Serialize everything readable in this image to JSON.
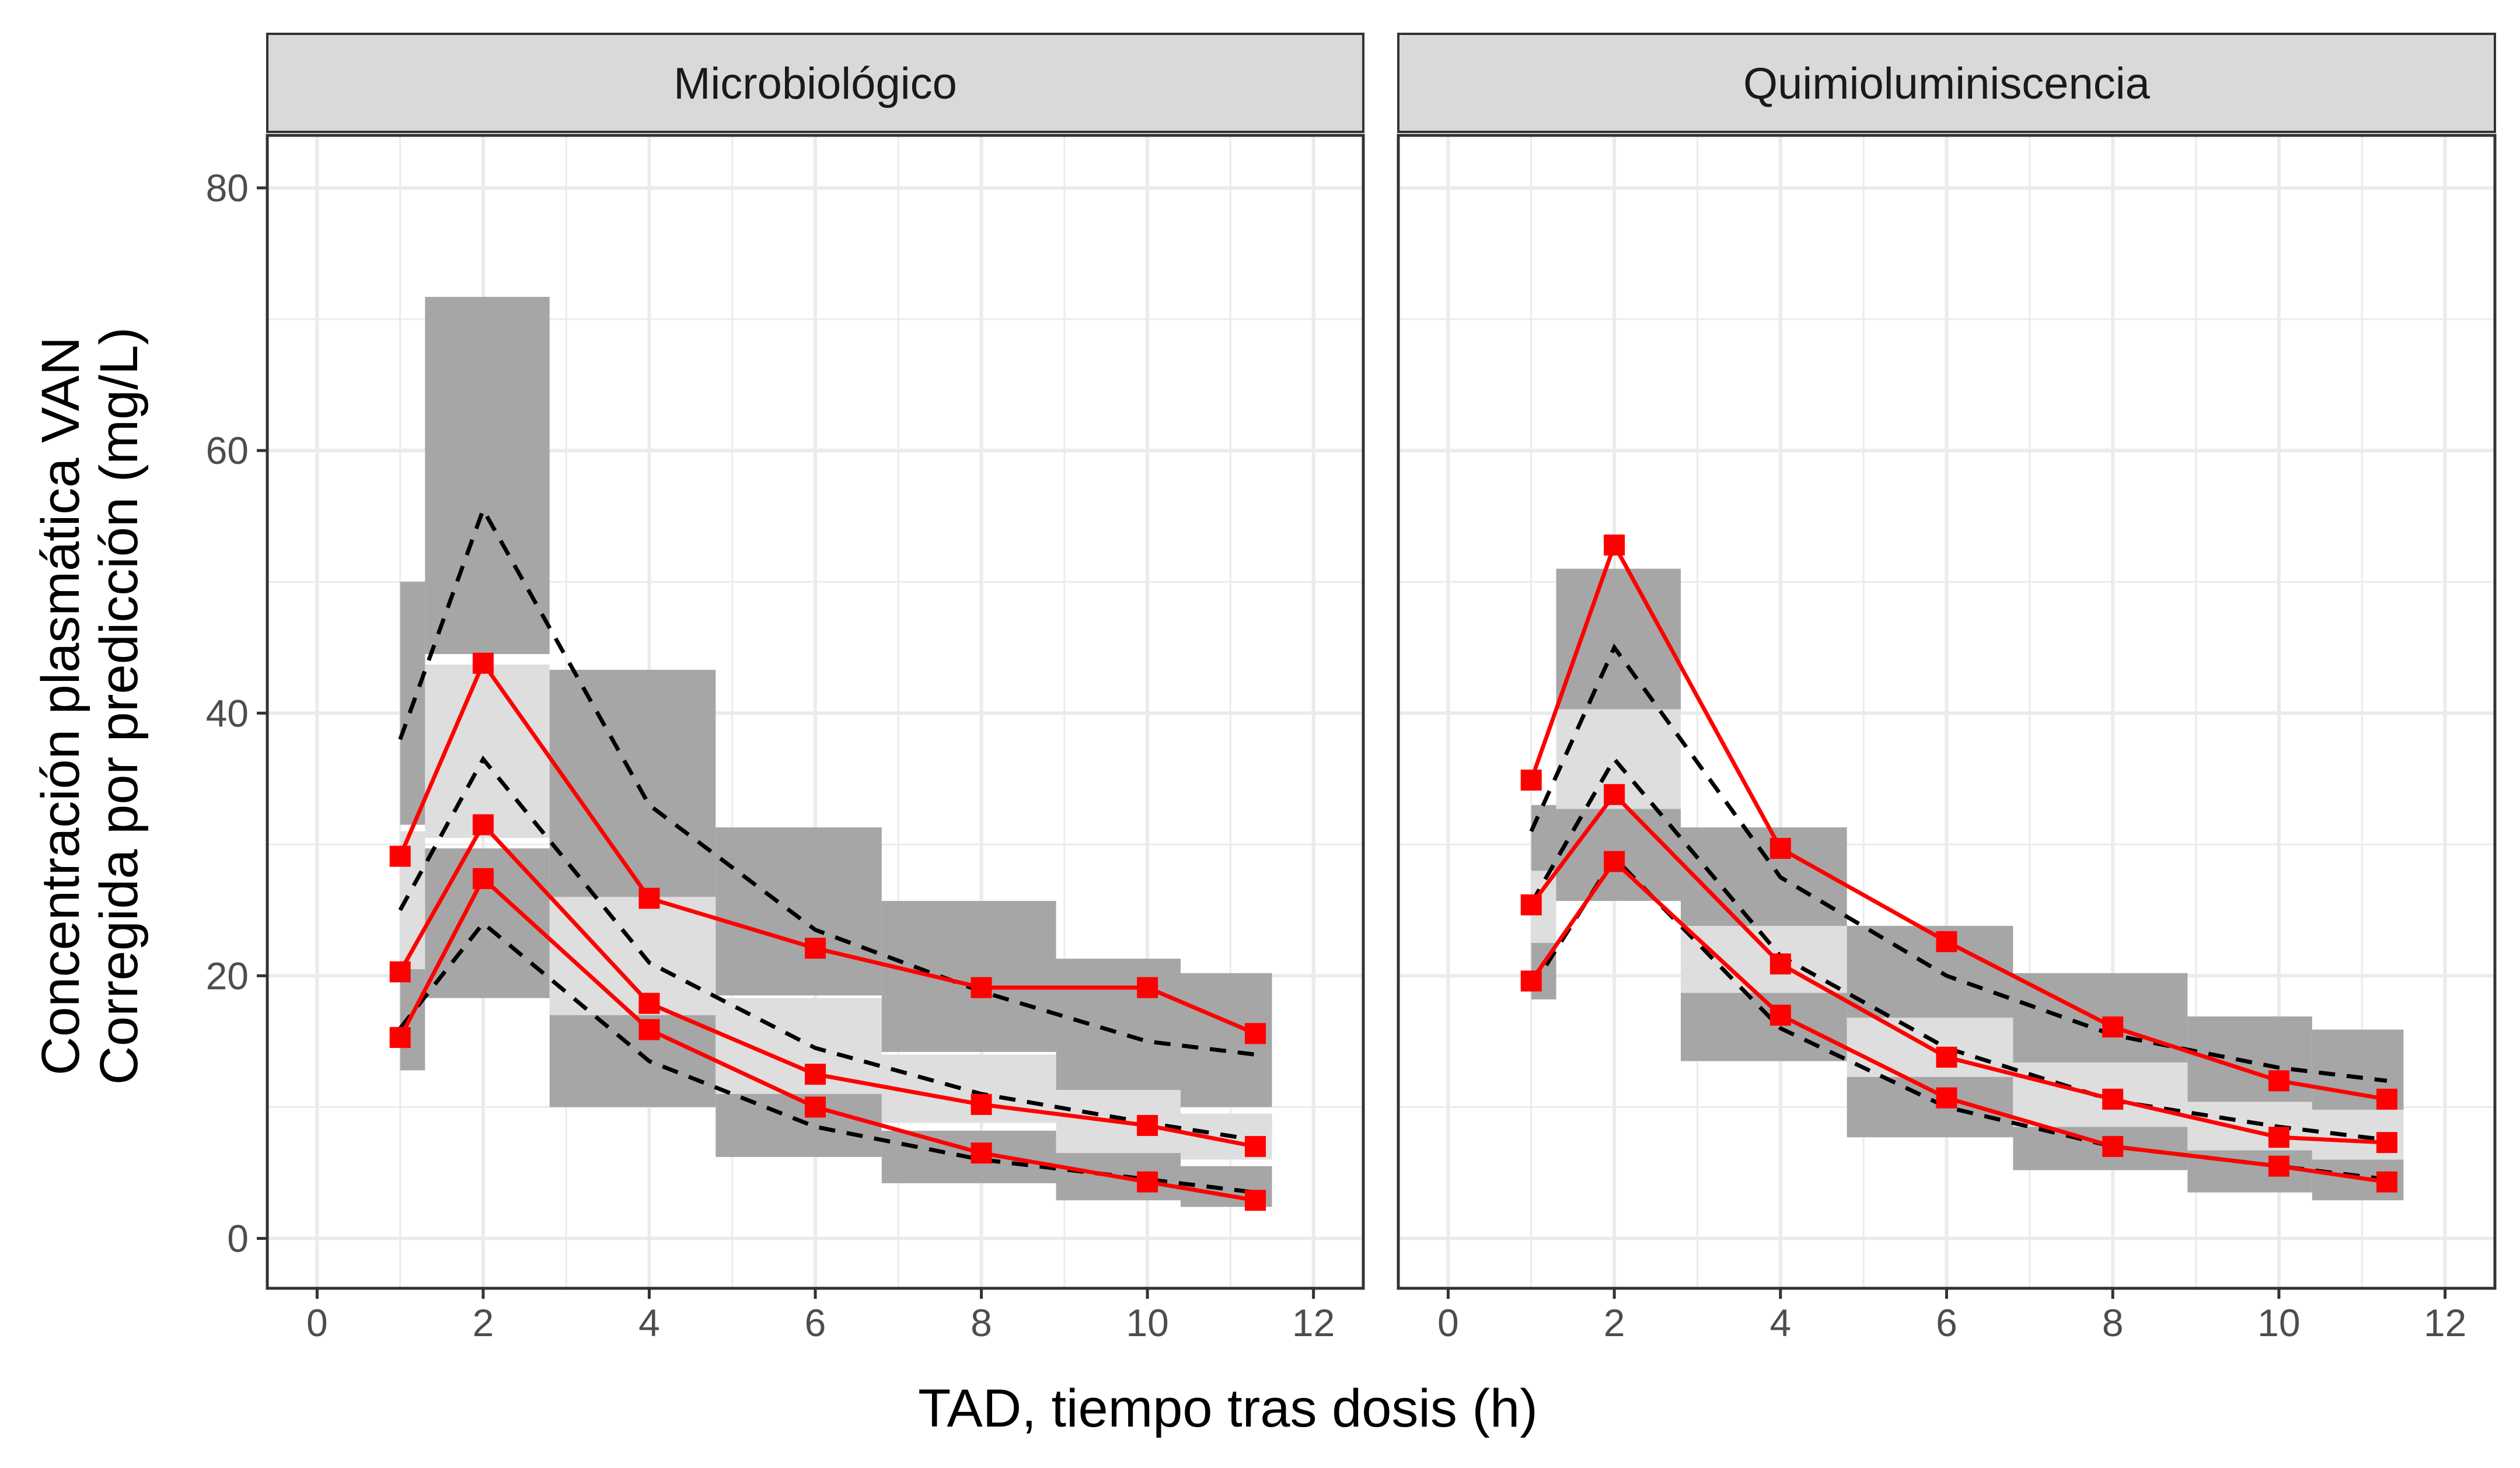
{
  "chart_data": {
    "type": "line",
    "xlabel": "TAD, tiempo tras dosis (h)",
    "ylabel_line1": "Concentración plasmática VAN",
    "ylabel_line2": "Corregida por predicción (mg/L)",
    "xlim": [
      -0.6,
      12.6
    ],
    "ylim": [
      -3.8,
      84
    ],
    "x_ticks": [
      0,
      2,
      4,
      6,
      8,
      10,
      12
    ],
    "y_ticks": [
      0,
      20,
      40,
      60,
      80
    ],
    "grid": true,
    "colors": {
      "observed": "#ff0000",
      "predicted": "#000000",
      "ci_percentile": "#a6a6a6",
      "ci_median": "#dedede",
      "strip_fill": "#d9d9d9",
      "grid": "#ebebeb"
    },
    "panels": [
      {
        "strip": "Microbiológico",
        "bins": [
          {
            "x0": 1.0,
            "x1": 1.3,
            "lo": [
              12.8,
              21.0
            ],
            "md": [
              20.5,
              31.0
            ],
            "hi": [
              31.5,
              50.0
            ]
          },
          {
            "x0": 1.3,
            "x1": 2.8,
            "lo": [
              18.3,
              29.7
            ],
            "md": [
              30.5,
              43.7
            ],
            "hi": [
              44.5,
              71.7
            ]
          },
          {
            "x0": 2.8,
            "x1": 4.8,
            "lo": [
              10.0,
              17.3
            ],
            "md": [
              17.0,
              26.0
            ],
            "hi": [
              26.0,
              43.3
            ]
          },
          {
            "x0": 4.8,
            "x1": 6.8,
            "lo": [
              6.2,
              11.3
            ],
            "md": [
              11.0,
              18.3
            ],
            "hi": [
              18.5,
              31.3
            ]
          },
          {
            "x0": 6.8,
            "x1": 8.9,
            "lo": [
              4.2,
              8.2
            ],
            "md": [
              8.8,
              14.0
            ],
            "hi": [
              14.2,
              25.7
            ]
          },
          {
            "x0": 8.9,
            "x1": 10.4,
            "lo": [
              2.9,
              6.8
            ],
            "md": [
              6.5,
              11.3
            ],
            "hi": [
              11.3,
              21.3
            ]
          },
          {
            "x0": 10.4,
            "x1": 11.5,
            "lo": [
              2.4,
              5.5
            ],
            "md": [
              6.0,
              9.5
            ],
            "hi": [
              10.0,
              20.2
            ]
          }
        ],
        "x": [
          1.0,
          2.0,
          4.0,
          6.0,
          8.0,
          10.0,
          11.3
        ],
        "observed": [
          {
            "name": "p95",
            "values": [
              29.1,
              43.8,
              25.9,
              22.1,
              19.1,
              19.1,
              15.6
            ]
          },
          {
            "name": "p50",
            "values": [
              20.3,
              31.5,
              17.9,
              12.5,
              10.2,
              8.6,
              7.0
            ]
          },
          {
            "name": "p05",
            "values": [
              15.3,
              27.4,
              15.9,
              10.0,
              6.5,
              4.3,
              2.9
            ]
          }
        ],
        "predicted": [
          {
            "name": "p95",
            "values": [
              38.0,
              55.5,
              33.0,
              23.5,
              18.8,
              15.0,
              14.0
            ]
          },
          {
            "name": "p50",
            "values": [
              25.0,
              36.5,
              21.0,
              14.5,
              11.0,
              8.8,
              7.5
            ]
          },
          {
            "name": "p05",
            "values": [
              16.0,
              24.0,
              13.5,
              8.5,
              6.0,
              4.5,
              3.5
            ]
          }
        ]
      },
      {
        "strip": "Quimioluminiscencia",
        "bins": [
          {
            "x0": 1.0,
            "x1": 1.3,
            "lo": [
              18.2,
              23.0
            ],
            "md": [
              22.5,
              28.0
            ],
            "hi": [
              27.5,
              33.0
            ]
          },
          {
            "x0": 1.3,
            "x1": 2.8,
            "lo": [
              25.7,
              33.3
            ],
            "md": [
              32.7,
              40.3
            ],
            "hi": [
              40.3,
              51.0
            ]
          },
          {
            "x0": 2.8,
            "x1": 4.8,
            "lo": [
              13.5,
              18.7
            ],
            "md": [
              18.7,
              23.8
            ],
            "hi": [
              23.7,
              31.3
            ]
          },
          {
            "x0": 4.8,
            "x1": 6.8,
            "lo": [
              7.7,
              12.3
            ],
            "md": [
              12.3,
              16.8
            ],
            "hi": [
              16.8,
              23.8
            ]
          },
          {
            "x0": 6.8,
            "x1": 8.9,
            "lo": [
              5.2,
              8.5
            ],
            "md": [
              8.5,
              13.4
            ],
            "hi": [
              13.3,
              20.2
            ]
          },
          {
            "x0": 8.9,
            "x1": 10.4,
            "lo": [
              3.5,
              7.0
            ],
            "md": [
              6.7,
              10.4
            ],
            "hi": [
              10.3,
              16.9
            ]
          },
          {
            "x0": 10.4,
            "x1": 11.5,
            "lo": [
              2.9,
              6.0
            ],
            "md": [
              6.0,
              9.8
            ],
            "hi": [
              9.7,
              15.9
            ]
          }
        ],
        "x": [
          1.0,
          2.0,
          4.0,
          6.0,
          8.0,
          10.0,
          11.3
        ],
        "observed": [
          {
            "name": "p95",
            "values": [
              34.9,
              52.8,
              29.7,
              22.6,
              16.1,
              12.0,
              10.6
            ]
          },
          {
            "name": "p50",
            "values": [
              25.4,
              33.8,
              20.9,
              13.8,
              10.6,
              7.7,
              7.3
            ]
          },
          {
            "name": "p05",
            "values": [
              19.6,
              28.7,
              17.0,
              10.7,
              7.0,
              5.5,
              4.3
            ]
          }
        ],
        "predicted": [
          {
            "name": "p95",
            "values": [
              31.0,
              45.0,
              27.5,
              20.0,
              15.5,
              13.0,
              12.0
            ]
          },
          {
            "name": "p50",
            "values": [
              25.5,
              36.5,
              21.5,
              14.5,
              10.5,
              8.5,
              7.5
            ]
          },
          {
            "name": "p05",
            "values": [
              19.0,
              29.0,
              16.0,
              10.0,
              7.0,
              5.5,
              4.5
            ]
          }
        ]
      }
    ]
  }
}
